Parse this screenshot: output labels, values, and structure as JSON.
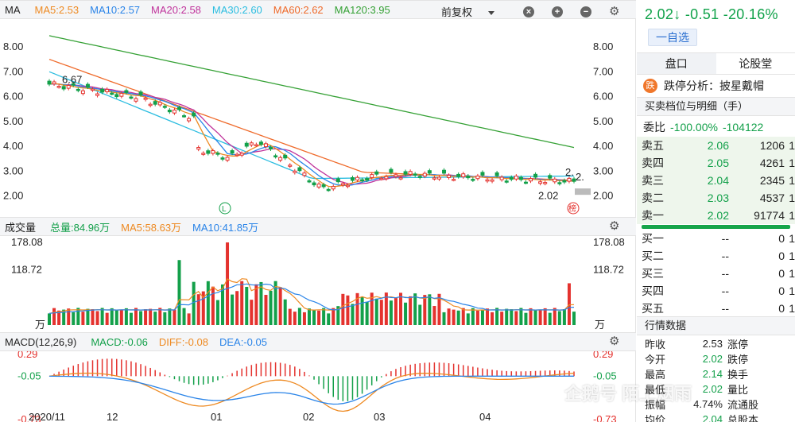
{
  "ma_header": {
    "title": "MA",
    "ma5": "MA5:2.53",
    "ma10": "MA10:2.57",
    "ma20": "MA20:2.58",
    "ma30": "MA30:2.60",
    "ma60": "MA60:2.62",
    "ma120": "MA120:3.95",
    "adjust": "前复权"
  },
  "vol_header": {
    "title": "成交量",
    "total": "总量:84.96万",
    "ma5": "MA5:58.63万",
    "ma10": "MA10:41.85万"
  },
  "macd_header": {
    "title": "MACD(12,26,9)",
    "macd": "MACD:-0.06",
    "diff": "DIFF:-0.08",
    "dea": "DEA:-0.05"
  },
  "price_axis": [
    "8.00",
    "7.00",
    "6.00",
    "5.00",
    "4.00",
    "3.00",
    "2.00"
  ],
  "vol_axis": [
    "178.08",
    "118.72",
    "万"
  ],
  "macd_axis": [
    "0.29",
    "-0.05",
    "-0.73"
  ],
  "x_axis": [
    "2020/11",
    "12",
    "01",
    "02",
    "03",
    "04"
  ],
  "annotations": {
    "high": "6.67",
    "low": "2.02",
    "last_right": "2.",
    "last_right2": "2.",
    "rank_badge": "榜",
    "limit_marker": "L"
  },
  "colors": {
    "ma5": "#ee8a22",
    "ma10": "#2a84e8",
    "ma20": "#c0339c",
    "ma30": "#2bbde0",
    "ma60": "#ef6a2a",
    "ma120": "#35a135",
    "up": "#e4322e",
    "down": "#13a04a"
  },
  "chart_data": {
    "type": "candlestick",
    "x_range": [
      "2020/11",
      "04"
    ],
    "price_ylim": [
      1.6,
      8.8
    ],
    "ma5_last": 2.53,
    "ma10_last": 2.57,
    "ma20_last": 2.58,
    "ma30_last": 2.6,
    "ma60_last": 2.62,
    "ma120_last": 3.95,
    "price_high": 6.67,
    "price_low": 2.02,
    "volume_ylim": [
      0,
      178.08
    ],
    "macd_ylim": [
      -0.73,
      0.29
    ],
    "macd": -0.06,
    "diff": -0.08,
    "dea": -0.05
  },
  "quote": {
    "price": "2.02↓",
    "change": "-0.51",
    "pct": "-20.16%"
  },
  "add_watch": "一自选",
  "tabs": [
    "盘口",
    "论股堂"
  ],
  "limit_analysis": {
    "icon": "跌",
    "label": "跌停分析：",
    "value": "披星戴帽"
  },
  "orderbook_title": "买卖档位与明细（手）",
  "webi": {
    "label": "委比",
    "pct": "-100.00%",
    "value": "-104122"
  },
  "sells": [
    {
      "label": "卖五",
      "price": "2.06",
      "vol": "1206",
      "extra": "1"
    },
    {
      "label": "卖四",
      "price": "2.05",
      "vol": "4261",
      "extra": "1"
    },
    {
      "label": "卖三",
      "price": "2.04",
      "vol": "2345",
      "extra": "1"
    },
    {
      "label": "卖二",
      "price": "2.03",
      "vol": "4537",
      "extra": "1"
    },
    {
      "label": "卖一",
      "price": "2.02",
      "vol": "91774",
      "extra": "1"
    }
  ],
  "buys": [
    {
      "label": "买一",
      "price": "--",
      "vol": "0",
      "extra": "1"
    },
    {
      "label": "买二",
      "price": "--",
      "vol": "0",
      "extra": "1"
    },
    {
      "label": "买三",
      "price": "--",
      "vol": "0",
      "extra": "1"
    },
    {
      "label": "买四",
      "price": "--",
      "vol": "0",
      "extra": "1"
    },
    {
      "label": "买五",
      "price": "--",
      "vol": "0",
      "extra": "1"
    }
  ],
  "stats_title": "行情数据",
  "stats": [
    {
      "k": "昨收",
      "v": "2.53",
      "k2": "涨停",
      "color": ""
    },
    {
      "k": "今开",
      "v": "2.02",
      "k2": "跌停",
      "color": "green"
    },
    {
      "k": "最高",
      "v": "2.14",
      "k2": "换手",
      "color": "green"
    },
    {
      "k": "最低",
      "v": "2.02",
      "k2": "量比",
      "color": "green"
    },
    {
      "k": "振幅",
      "v": "4.74%",
      "k2": "流通股",
      "color": ""
    },
    {
      "k": "均价",
      "v": "2.04",
      "k2": "总股本",
      "color": "green"
    }
  ],
  "watermark": "企鹅号 陌上烟雨"
}
